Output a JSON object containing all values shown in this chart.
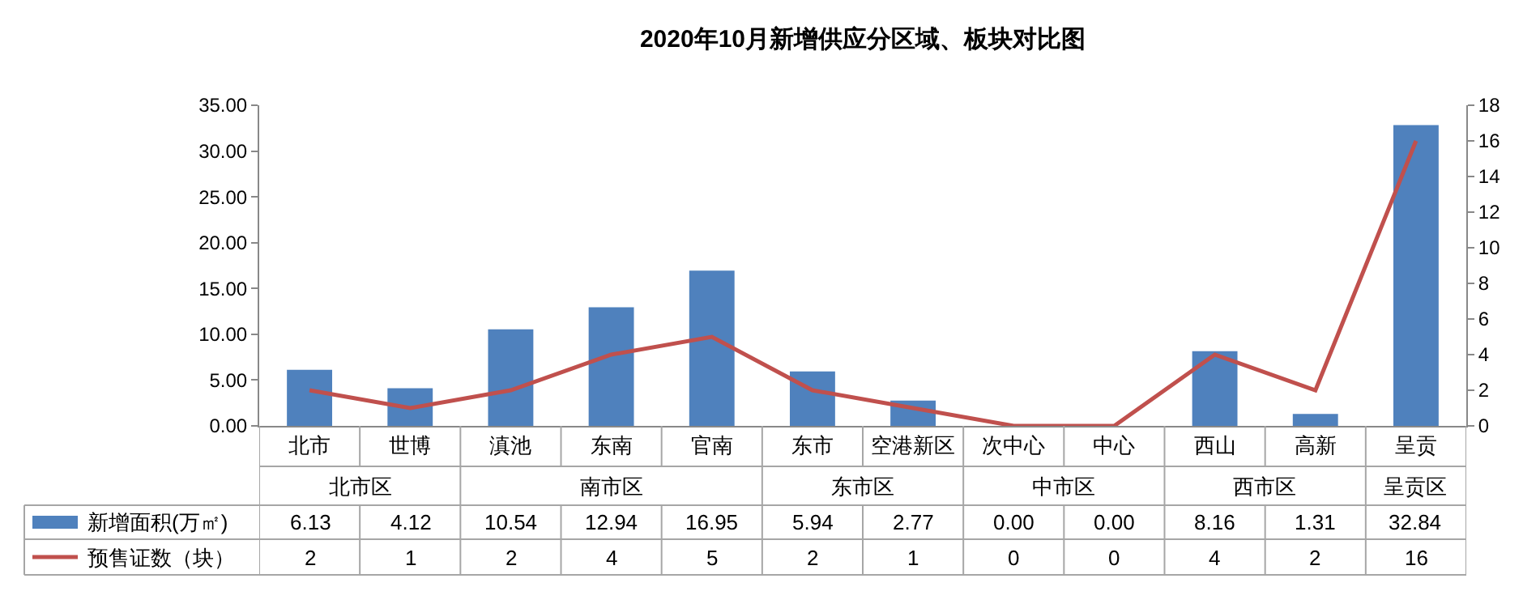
{
  "chart_data": {
    "type": "bar",
    "title": "2020年10月新增供应分区域、板块对比图",
    "categories": [
      "北市",
      "世博",
      "滇池",
      "东南",
      "官南",
      "东市",
      "空港新区",
      "次中心",
      "中心",
      "西山",
      "高新",
      "呈贡"
    ],
    "series": [
      {
        "name": "新增面积(万㎡)",
        "color": "#4f81bd",
        "values": [
          6.13,
          4.12,
          10.54,
          12.94,
          16.95,
          5.94,
          2.77,
          0.0,
          0.0,
          8.16,
          1.31,
          32.84
        ],
        "value_labels": [
          "6.13",
          "4.12",
          "10.54",
          "12.94",
          "16.95",
          "5.94",
          "2.77",
          "0.00",
          "0.00",
          "8.16",
          "1.31",
          "32.84"
        ]
      },
      {
        "name": "预售证数（块）",
        "type": "line",
        "axis": "y2",
        "color": "#c0504d",
        "values": [
          2,
          1,
          2,
          4,
          5,
          2,
          1,
          0,
          0,
          4,
          2,
          16
        ],
        "value_labels": [
          "2",
          "1",
          "2",
          "4",
          "5",
          "2",
          "1",
          "0",
          "0",
          "4",
          "2",
          "16"
        ]
      }
    ],
    "annotations": [
      "北市区",
      "南市区",
      "东市区",
      "中市区",
      "西市区",
      "呈贡区"
    ],
    "ylim": [
      0,
      35
    ],
    "yticks": [
      {
        "value": 0,
        "label": "0.00"
      },
      {
        "value": 5,
        "label": "5.00"
      },
      {
        "value": 10,
        "label": "10.00"
      },
      {
        "value": 15,
        "label": "15.00"
      },
      {
        "value": 20,
        "label": "20.00"
      },
      {
        "value": 25,
        "label": "25.00"
      },
      {
        "value": 30,
        "label": "30.00"
      },
      {
        "value": 35,
        "label": "35.00"
      }
    ],
    "y2lim": [
      0,
      18
    ],
    "y2ticks": [
      0,
      2,
      4,
      6,
      8,
      10,
      12,
      14,
      16,
      18
    ],
    "grid": false,
    "legend": "bottom left",
    "marker": "none",
    "line_style": "solid"
  }
}
